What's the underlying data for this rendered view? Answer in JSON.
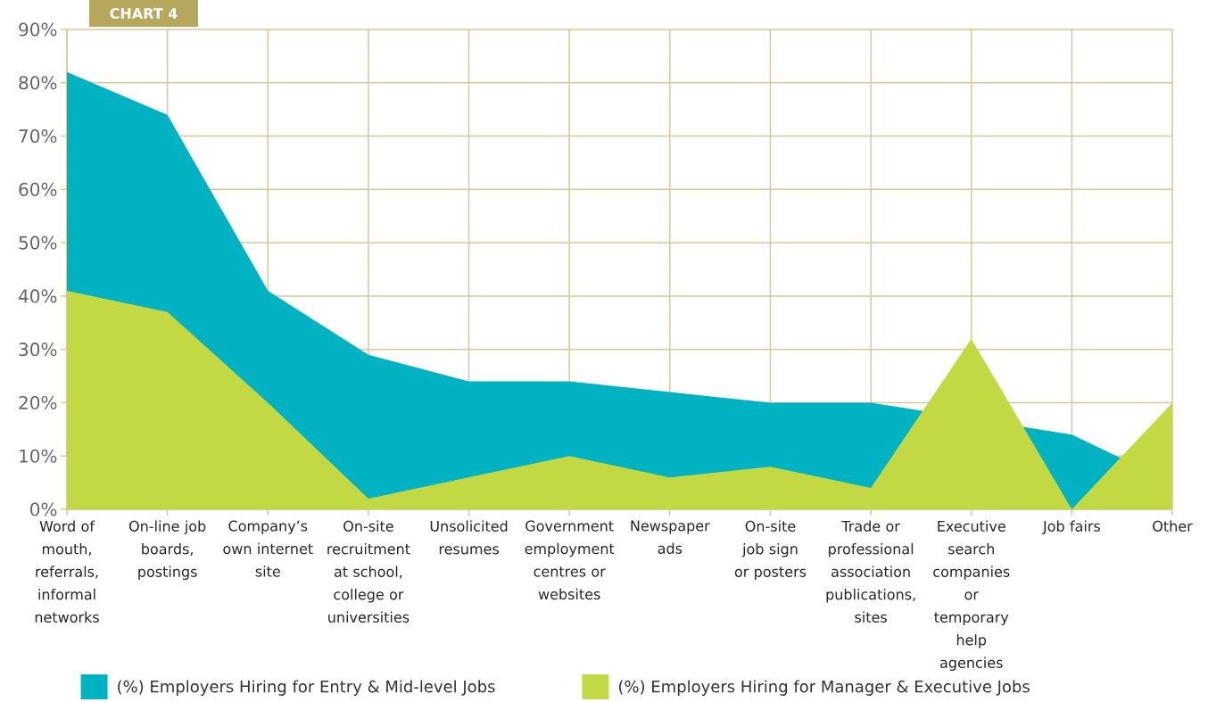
{
  "chart_data": {
    "type": "area",
    "title": "CHART 4",
    "categories": [
      "Word of mouth, referrals, informal networks",
      "On-line job boards, postings",
      "Company’s own internet site",
      "On-site recruitment at school, college or universities",
      "Unsolicited resumes",
      "Government employment centres or websites",
      "Newspaper ads",
      "On-site job sign or posters",
      "Trade or professional association publications, sites",
      "Executive search companies or temporary help agencies",
      "Job fairs",
      "Other"
    ],
    "series": [
      {
        "name": "(%) Employers Hiring for Entry & Mid-level Jobs",
        "color": "#00b2c2",
        "values": [
          82,
          74,
          41,
          29,
          24,
          24,
          22,
          20,
          20,
          null,
          14,
          5
        ]
      },
      {
        "name": "(%) Employers Hiring for Manager & Executive Jobs",
        "color": "#c3d943",
        "values": [
          41,
          37,
          20,
          2,
          6,
          10,
          6,
          8,
          4,
          32,
          0,
          20
        ]
      }
    ],
    "ylim": [
      0,
      90
    ],
    "yticks": [
      {
        "value": 0,
        "label": "0%"
      },
      {
        "value": 10,
        "label": "10%"
      },
      {
        "value": 20,
        "label": "20%"
      },
      {
        "value": 30,
        "label": "30%"
      },
      {
        "value": 40,
        "label": "40%"
      },
      {
        "value": 50,
        "label": "50%"
      },
      {
        "value": 60,
        "label": "60%"
      },
      {
        "value": 70,
        "label": "70%"
      },
      {
        "value": 80,
        "label": "80%"
      },
      {
        "value": 90,
        "label": "90%"
      }
    ],
    "grid": true,
    "legend": "bottom"
  }
}
